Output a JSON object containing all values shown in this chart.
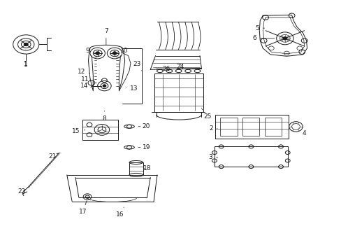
{
  "background_color": "#ffffff",
  "line_color": "#1a1a1a",
  "fig_width": 4.89,
  "fig_height": 3.6,
  "dpi": 100,
  "label_fontsize": 6.5
}
